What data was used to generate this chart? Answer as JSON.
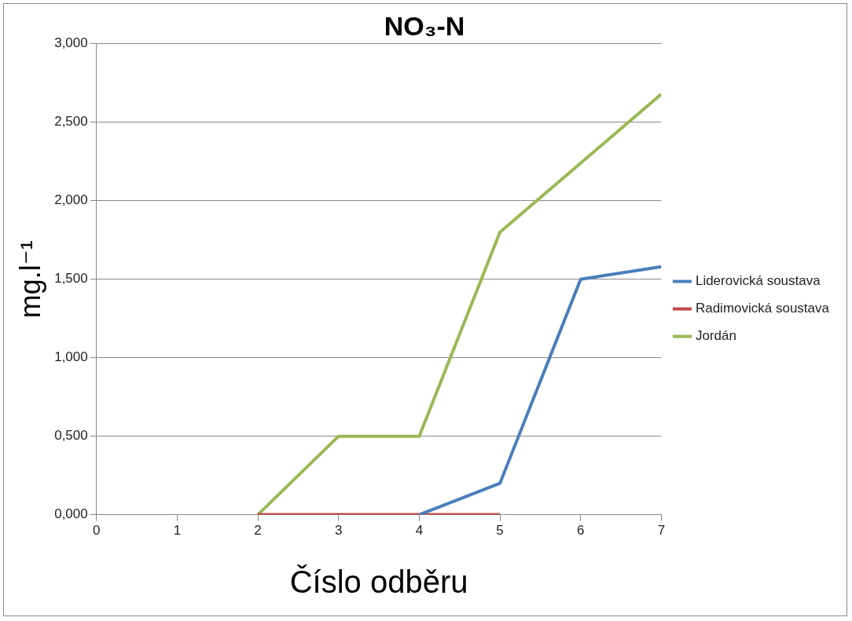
{
  "chart_data": {
    "type": "line",
    "title": "NO₃-N",
    "xlabel": "Číslo odběru",
    "ylabel": "mg.l⁻¹",
    "xlim": [
      0,
      7
    ],
    "xticks": [
      0,
      1,
      2,
      3,
      4,
      5,
      6,
      7
    ],
    "ylim": [
      0,
      3
    ],
    "yticks": [
      {
        "value": 0,
        "label": "0,000"
      },
      {
        "value": 0.5,
        "label": "0,500"
      },
      {
        "value": 1,
        "label": "1,000"
      },
      {
        "value": 1.5,
        "label": "1,500"
      },
      {
        "value": 2,
        "label": "2,000"
      },
      {
        "value": 2.5,
        "label": "2,500"
      },
      {
        "value": 3,
        "label": "3,000"
      }
    ],
    "grid": "y",
    "legend": "right",
    "marker": "none",
    "line_style": "solid",
    "series": [
      {
        "name": "Liderovická soustava",
        "color": "#4a7ebb",
        "x": [
          4,
          5,
          6,
          7
        ],
        "values": [
          0,
          0.2,
          1.5,
          1.58
        ]
      },
      {
        "name": "Radimovická soustava",
        "color": "#be4b48",
        "x": [
          2,
          3,
          4,
          5
        ],
        "values": [
          0,
          0,
          0,
          0
        ]
      },
      {
        "name": "Jordán",
        "color": "#98b954",
        "x": [
          2,
          3,
          4,
          5,
          6,
          7
        ],
        "values": [
          0,
          0.5,
          0.5,
          1.8,
          2.24,
          2.68
        ]
      }
    ]
  }
}
